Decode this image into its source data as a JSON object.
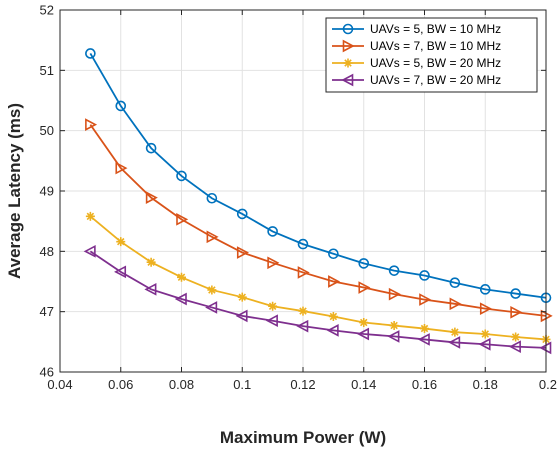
{
  "chart_data": {
    "type": "line",
    "xlabel": "Maximum Power (W)",
    "ylabel": "Average Latency (ms)",
    "xlim": [
      0.04,
      0.2
    ],
    "ylim": [
      46,
      52
    ],
    "xticks": [
      "0.04",
      "0.06",
      "0.08",
      "0.1",
      "0.12",
      "0.14",
      "0.16",
      "0.18",
      "0.2"
    ],
    "yticks": [
      "46",
      "47",
      "48",
      "49",
      "50",
      "51",
      "52"
    ],
    "grid": true,
    "legend_position": "top-right",
    "x": [
      0.05,
      0.06,
      0.07,
      0.08,
      0.09,
      0.1,
      0.11,
      0.12,
      0.13,
      0.14,
      0.15,
      0.16,
      0.17,
      0.18,
      0.19,
      0.2
    ],
    "series": [
      {
        "name": "UAVs = 5, BW = 10 MHz",
        "color": "#0072BD",
        "marker": "circle",
        "values": [
          51.28,
          50.41,
          49.71,
          49.25,
          48.88,
          48.62,
          48.33,
          48.12,
          47.96,
          47.8,
          47.68,
          47.6,
          47.48,
          47.37,
          47.3,
          47.23
        ]
      },
      {
        "name": "UAVs = 7, BW = 10 MHz",
        "color": "#D95319",
        "marker": "triangle-right",
        "values": [
          50.1,
          49.38,
          48.89,
          48.53,
          48.24,
          47.98,
          47.81,
          47.65,
          47.5,
          47.4,
          47.29,
          47.2,
          47.13,
          47.05,
          46.99,
          46.93
        ]
      },
      {
        "name": "UAVs = 5, BW = 20 MHz",
        "color": "#EDB120",
        "marker": "asterisk",
        "values": [
          48.58,
          48.16,
          47.82,
          47.57,
          47.36,
          47.24,
          47.09,
          47.01,
          46.92,
          46.82,
          46.77,
          46.72,
          46.66,
          46.63,
          46.58,
          46.54
        ]
      },
      {
        "name": "UAVs = 7, BW = 20 MHz",
        "color": "#7E2F8E",
        "marker": "triangle-left",
        "values": [
          48.0,
          47.66,
          47.37,
          47.21,
          47.07,
          46.93,
          46.85,
          46.76,
          46.69,
          46.63,
          46.59,
          46.54,
          46.49,
          46.46,
          46.42,
          46.4
        ]
      }
    ]
  }
}
